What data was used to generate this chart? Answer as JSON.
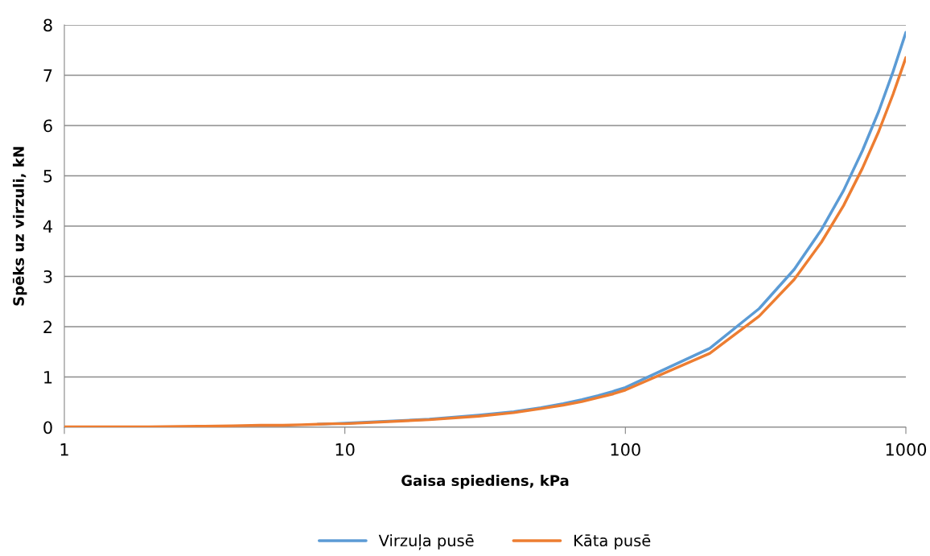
{
  "chart_data": {
    "type": "line",
    "xlabel": "Gaisa spiediens, kPa",
    "ylabel": "Spēks uz virzuli, kN",
    "x": [
      1,
      2,
      3,
      4,
      5,
      6,
      7,
      8,
      9,
      10,
      20,
      30,
      40,
      50,
      60,
      70,
      80,
      90,
      100,
      200,
      300,
      400,
      500,
      600,
      700,
      800,
      900,
      1000
    ],
    "series": [
      {
        "name": "Virzuļa pusē",
        "color": "#5b9bd5",
        "values": [
          null,
          null,
          null,
          null,
          null,
          null,
          null,
          0.06,
          0.07,
          0.08,
          0.16,
          0.24,
          0.31,
          0.39,
          0.47,
          0.55,
          0.63,
          0.71,
          0.79,
          1.57,
          2.36,
          3.14,
          3.93,
          4.71,
          5.5,
          6.28,
          7.07,
          7.85
        ]
      },
      {
        "name": "Kāta pusē",
        "color": "#ed7d31",
        "values": [
          0.01,
          0.01,
          0.02,
          0.03,
          0.04,
          0.04,
          0.05,
          0.06,
          0.07,
          0.07,
          0.15,
          0.22,
          0.29,
          0.37,
          0.44,
          0.51,
          0.59,
          0.66,
          0.74,
          1.47,
          2.21,
          2.94,
          3.68,
          4.41,
          5.15,
          5.88,
          6.62,
          7.35
        ]
      }
    ],
    "log": "x",
    "xlim": [
      1,
      1000
    ],
    "xticks": [
      1,
      10,
      100,
      1000
    ],
    "ylim": [
      0,
      8
    ],
    "yticks": [
      0,
      1,
      2,
      3,
      4,
      5,
      6,
      7,
      8
    ],
    "grid": "y",
    "legend": "bottom",
    "marker": "none",
    "line_style": "solid"
  }
}
